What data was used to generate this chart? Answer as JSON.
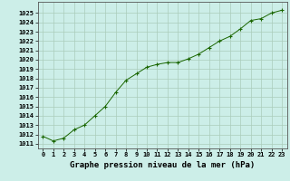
{
  "x": [
    0,
    1,
    2,
    3,
    4,
    5,
    6,
    7,
    8,
    9,
    10,
    11,
    12,
    13,
    14,
    15,
    16,
    17,
    18,
    19,
    20,
    21,
    22,
    23
  ],
  "y": [
    1011.8,
    1011.3,
    1011.6,
    1012.5,
    1013.0,
    1014.0,
    1015.0,
    1016.5,
    1017.8,
    1018.5,
    1019.2,
    1019.5,
    1019.7,
    1019.7,
    1020.1,
    1020.6,
    1021.3,
    1022.0,
    1022.5,
    1023.3,
    1024.2,
    1024.4,
    1025.0,
    1025.3
  ],
  "line_color": "#1a6600",
  "marker_color": "#1a6600",
  "bg_color": "#cceee8",
  "grid_color": "#aaccbb",
  "title": "Graphe pression niveau de la mer (hPa)",
  "ylim_min": 1010.5,
  "ylim_max": 1026.2,
  "xlim_min": -0.5,
  "xlim_max": 23.5,
  "yticks": [
    1011,
    1012,
    1013,
    1014,
    1015,
    1016,
    1017,
    1018,
    1019,
    1020,
    1021,
    1022,
    1023,
    1024,
    1025
  ],
  "xticks": [
    0,
    1,
    2,
    3,
    4,
    5,
    6,
    7,
    8,
    9,
    10,
    11,
    12,
    13,
    14,
    15,
    16,
    17,
    18,
    19,
    20,
    21,
    22,
    23
  ],
  "tick_fontsize": 5.0,
  "title_fontsize": 6.5,
  "title_bold": true
}
